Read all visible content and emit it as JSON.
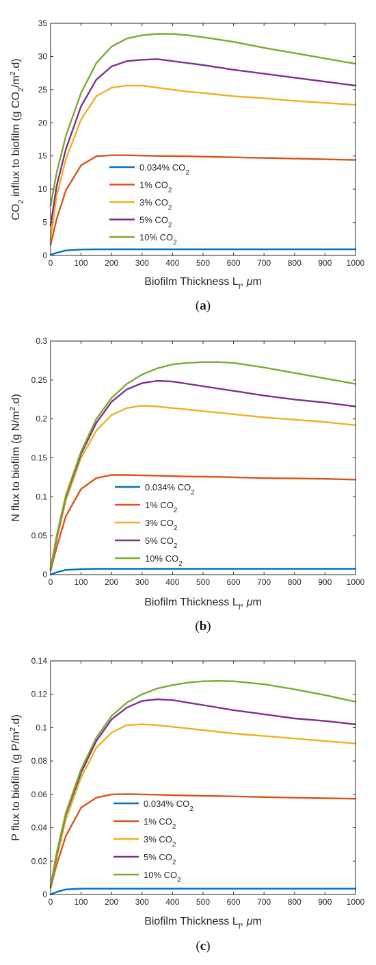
{
  "chart_data": [
    {
      "type": "line",
      "caption": "(a)",
      "ylabel": "CO2 influx to biofilm (g CO2/m2.d)",
      "ylabel_parts": {
        "pre": "CO",
        "sub1": "2",
        "mid": " influx to biofilm (g CO",
        "sub2": "2",
        "mid2": "/m",
        "sup": "2",
        "post": ".d)"
      },
      "xlabel": "Biofilm Thickness Lf, μm",
      "xlabel_parts": {
        "pre": "Biofilm Thickness L",
        "sub": "f",
        "post": ", μm"
      },
      "xlim": [
        0,
        1000
      ],
      "ylim": [
        0,
        35
      ],
      "xticks": [
        0,
        100,
        200,
        300,
        400,
        500,
        600,
        700,
        800,
        900,
        1000
      ],
      "yticks": [
        0,
        5,
        10,
        15,
        20,
        25,
        30,
        35
      ],
      "legend": "center-left",
      "x": [
        0,
        20,
        50,
        100,
        150,
        200,
        250,
        300,
        350,
        400,
        450,
        500,
        600,
        700,
        800,
        900,
        1000
      ],
      "series": [
        {
          "name": "0.034% CO2",
          "label_pre": "0.034% CO",
          "label_sub": "2",
          "color": "#0072BD",
          "values": [
            0.1,
            0.4,
            0.75,
            0.9,
            0.92,
            0.93,
            0.93,
            0.93,
            0.93,
            0.93,
            0.93,
            0.93,
            0.93,
            0.93,
            0.93,
            0.93,
            0.93
          ]
        },
        {
          "name": "1% CO2",
          "label_pre": "1% CO",
          "label_sub": "2",
          "color": "#D95319",
          "values": [
            1.6,
            5.5,
            9.8,
            13.6,
            14.95,
            15.1,
            15.1,
            15.05,
            15.0,
            14.98,
            14.95,
            14.9,
            14.8,
            14.7,
            14.6,
            14.5,
            14.4
          ]
        },
        {
          "name": "3% CO2",
          "label_pre": "3% CO",
          "label_sub": "2",
          "color": "#EDB120",
          "values": [
            2.5,
            9.0,
            14.5,
            20.5,
            24.0,
            25.3,
            25.6,
            25.6,
            25.3,
            25.0,
            24.7,
            24.5,
            24.0,
            23.7,
            23.3,
            23.0,
            22.7
          ]
        },
        {
          "name": "5% CO2",
          "label_pre": "5% CO",
          "label_sub": "2",
          "color": "#7E2F8E",
          "values": [
            4.5,
            10.5,
            16.0,
            22.5,
            26.5,
            28.5,
            29.3,
            29.5,
            29.6,
            29.3,
            29.0,
            28.7,
            28.0,
            27.4,
            26.8,
            26.2,
            25.6
          ]
        },
        {
          "name": "10% CO2",
          "label_pre": "10% CO",
          "label_sub": "2",
          "color": "#77AC30",
          "values": [
            7.5,
            12.5,
            18.0,
            24.5,
            29.0,
            31.5,
            32.7,
            33.2,
            33.4,
            33.4,
            33.2,
            32.9,
            32.2,
            31.3,
            30.5,
            29.7,
            28.9
          ]
        }
      ]
    },
    {
      "type": "line",
      "caption": "(b)",
      "ylabel": "N flux to biofilm (g N/m2.d)",
      "ylabel_parts": {
        "pre": "N flux to biofilm (g N/m",
        "sup": "2",
        "post": ".d)"
      },
      "xlabel": "Biofilm Thickness Lf, μm",
      "xlabel_parts": {
        "pre": "Biofilm Thickness L",
        "sub": "f",
        "post": ", μm"
      },
      "xlim": [
        0,
        1000
      ],
      "ylim": [
        0,
        0.3
      ],
      "xticks": [
        0,
        100,
        200,
        300,
        400,
        500,
        600,
        700,
        800,
        900,
        1000
      ],
      "yticks": [
        0,
        0.05,
        0.1,
        0.15,
        0.2,
        0.25,
        0.3
      ],
      "legend": "center",
      "x": [
        0,
        20,
        50,
        100,
        150,
        200,
        250,
        300,
        350,
        400,
        450,
        500,
        550,
        600,
        700,
        800,
        900,
        1000
      ],
      "series": [
        {
          "name": "0.034% CO2",
          "label_pre": "0.034% CO",
          "label_sub": "2",
          "color": "#0072BD",
          "values": [
            0.0,
            0.003,
            0.006,
            0.007,
            0.0075,
            0.0075,
            0.0075,
            0.0075,
            0.0075,
            0.0075,
            0.0075,
            0.0075,
            0.0075,
            0.0075,
            0.0075,
            0.0075,
            0.0075,
            0.0075
          ]
        },
        {
          "name": "1% CO2",
          "label_pre": "1% CO",
          "label_sub": "2",
          "color": "#D95319",
          "values": [
            0.005,
            0.035,
            0.075,
            0.11,
            0.124,
            0.128,
            0.128,
            0.1275,
            0.127,
            0.1265,
            0.126,
            0.1258,
            0.1255,
            0.125,
            0.124,
            0.1235,
            0.123,
            0.122
          ]
        },
        {
          "name": "3% CO2",
          "label_pre": "3% CO",
          "label_sub": "2",
          "color": "#EDB120",
          "values": [
            0.006,
            0.045,
            0.095,
            0.15,
            0.185,
            0.205,
            0.214,
            0.217,
            0.216,
            0.214,
            0.212,
            0.21,
            0.208,
            0.206,
            0.202,
            0.199,
            0.196,
            0.192
          ]
        },
        {
          "name": "5% CO2",
          "label_pre": "5% CO",
          "label_sub": "2",
          "color": "#7E2F8E",
          "values": [
            0.007,
            0.048,
            0.1,
            0.155,
            0.195,
            0.222,
            0.238,
            0.246,
            0.249,
            0.248,
            0.245,
            0.242,
            0.239,
            0.236,
            0.23,
            0.225,
            0.221,
            0.216
          ]
        },
        {
          "name": "10% CO2",
          "label_pre": "10% CO",
          "label_sub": "2",
          "color": "#77AC30",
          "values": [
            0.008,
            0.05,
            0.102,
            0.158,
            0.2,
            0.227,
            0.245,
            0.257,
            0.265,
            0.27,
            0.272,
            0.273,
            0.273,
            0.272,
            0.266,
            0.259,
            0.252,
            0.245
          ]
        }
      ]
    },
    {
      "type": "line",
      "caption": "(c)",
      "ylabel": "P flux to biofilm (g P/m2.d)",
      "ylabel_parts": {
        "pre": "P flux to biofilm (g P/m",
        "sup": "2",
        "post": ".d)"
      },
      "xlabel": "Biofilm Thickness Lf, μm",
      "xlabel_parts": {
        "pre": "Biofilm Thickness L",
        "sub": "f",
        "post": ", μm"
      },
      "xlim": [
        0,
        1000
      ],
      "ylim": [
        0,
        0.14
      ],
      "xticks": [
        0,
        100,
        200,
        300,
        400,
        500,
        600,
        700,
        800,
        900,
        1000
      ],
      "yticks": [
        0,
        0.02,
        0.04,
        0.06,
        0.08,
        0.1,
        0.12,
        0.14
      ],
      "legend": "center",
      "x": [
        0,
        20,
        50,
        100,
        150,
        200,
        250,
        300,
        350,
        400,
        450,
        500,
        550,
        600,
        700,
        800,
        900,
        1000
      ],
      "series": [
        {
          "name": "0.034% CO2",
          "label_pre": "0.034% CO",
          "label_sub": "2",
          "color": "#0072BD",
          "values": [
            0.0,
            0.0015,
            0.003,
            0.0035,
            0.0035,
            0.0035,
            0.0035,
            0.0035,
            0.0035,
            0.0035,
            0.0035,
            0.0035,
            0.0035,
            0.0035,
            0.0035,
            0.0035,
            0.0035,
            0.0035
          ]
        },
        {
          "name": "1% CO2",
          "label_pre": "1% CO",
          "label_sub": "2",
          "color": "#D95319",
          "values": [
            0.004,
            0.018,
            0.035,
            0.052,
            0.058,
            0.06,
            0.0602,
            0.06,
            0.0598,
            0.0595,
            0.0593,
            0.0591,
            0.059,
            0.0588,
            0.0584,
            0.058,
            0.0577,
            0.0574
          ]
        },
        {
          "name": "3% CO2",
          "label_pre": "3% CO",
          "label_sub": "2",
          "color": "#EDB120",
          "values": [
            0.005,
            0.022,
            0.045,
            0.07,
            0.088,
            0.097,
            0.1015,
            0.102,
            0.1015,
            0.1005,
            0.0995,
            0.0985,
            0.0975,
            0.0965,
            0.095,
            0.0935,
            0.092,
            0.0905
          ]
        },
        {
          "name": "5% CO2",
          "label_pre": "5% CO",
          "label_sub": "2",
          "color": "#7E2F8E",
          "values": [
            0.005,
            0.024,
            0.048,
            0.073,
            0.092,
            0.105,
            0.112,
            0.116,
            0.117,
            0.1165,
            0.115,
            0.1135,
            0.112,
            0.1105,
            0.108,
            0.1055,
            0.104,
            0.102
          ]
        },
        {
          "name": "10% CO2",
          "label_pre": "10% CO",
          "label_sub": "2",
          "color": "#77AC30",
          "values": [
            0.005,
            0.025,
            0.049,
            0.075,
            0.094,
            0.107,
            0.115,
            0.12,
            0.1235,
            0.1255,
            0.127,
            0.1278,
            0.128,
            0.1278,
            0.126,
            0.123,
            0.1195,
            0.1155
          ]
        }
      ]
    }
  ]
}
